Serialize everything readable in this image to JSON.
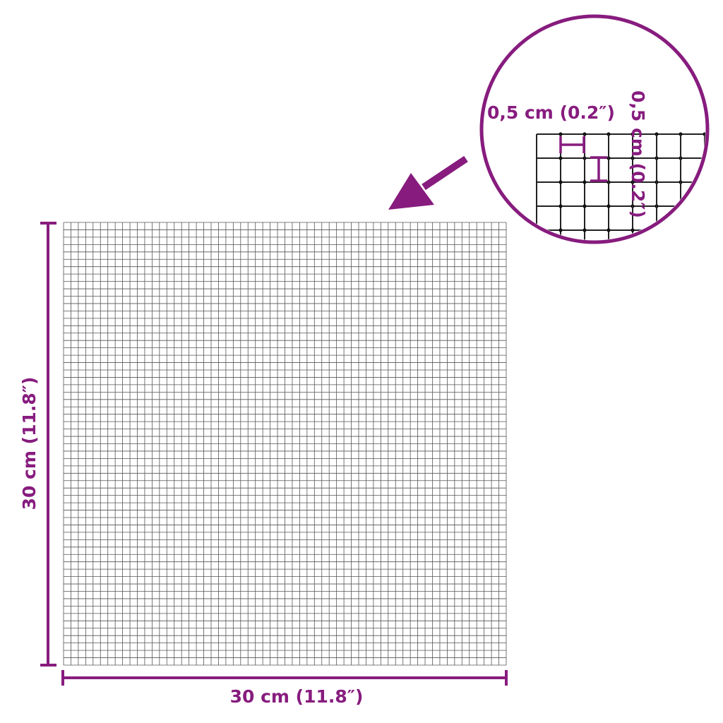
{
  "accent_color": "#871c7e",
  "grid": {
    "cells_per_side": 60,
    "line_color": "#555555"
  },
  "dimensions": {
    "width_label": "30 cm (11.8″)",
    "height_label": "30 cm (11.8″)"
  },
  "detail": {
    "horizontal_label": "0,5 cm (0.2″)",
    "vertical_label": "0,5 cm (0.2″)"
  },
  "icons": {
    "pointer": "arrow-down-left-icon"
  }
}
